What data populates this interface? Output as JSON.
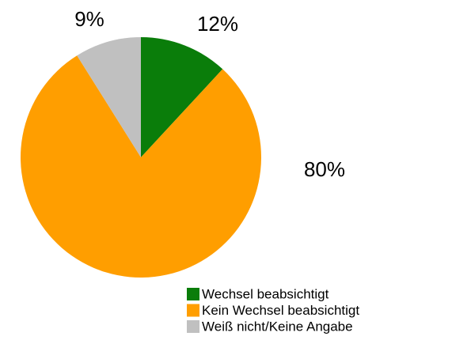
{
  "chart_data": {
    "type": "pie",
    "categories": [
      "Wechsel beabsichtigt",
      "Kein Wechsel beabsichtigt",
      "Weiß nicht/Keine Angabe"
    ],
    "values": [
      12,
      80,
      9
    ],
    "value_labels": [
      "12%",
      "80%",
      "9%"
    ],
    "colors": [
      "#0a7d0a",
      "#ff9e00",
      "#c0c0c0"
    ],
    "legend": "bottom-right"
  }
}
